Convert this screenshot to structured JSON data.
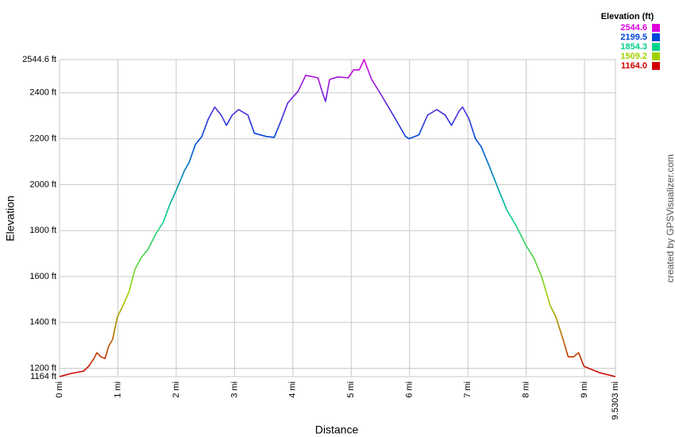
{
  "chart_data": {
    "type": "line",
    "xlabel": "Distance",
    "ylabel": "Elevation",
    "x": [
      0,
      0.2,
      0.41,
      0.5,
      0.59,
      0.64,
      0.71,
      0.78,
      0.84,
      0.91,
      0.99,
      1.09,
      1.19,
      1.29,
      1.4,
      1.51,
      1.65,
      1.78,
      1.89,
      2.0,
      2.14,
      2.22,
      2.33,
      2.44,
      2.55,
      2.66,
      2.77,
      2.86,
      2.96,
      3.07,
      3.23,
      3.34,
      3.54,
      3.68,
      3.81,
      3.91,
      4.09,
      4.22,
      4.43,
      4.5,
      4.56,
      4.63,
      4.77,
      4.95,
      5.04,
      5.14,
      5.22,
      5.35,
      5.52,
      5.72,
      5.93,
      5.99,
      6.16,
      6.31,
      6.47,
      6.61,
      6.72,
      6.85,
      6.91,
      7.02,
      7.13,
      7.23,
      7.37,
      7.53,
      7.67,
      7.83,
      8.0,
      8.13,
      8.27,
      8.41,
      8.51,
      8.62,
      8.72,
      8.81,
      8.9,
      8.99,
      9.26,
      9.53
    ],
    "values": [
      1164,
      1178,
      1188,
      1209,
      1243,
      1268,
      1250,
      1243,
      1295,
      1326,
      1423,
      1475,
      1533,
      1630,
      1682,
      1716,
      1785,
      1837,
      1913,
      1975,
      2061,
      2096,
      2175,
      2210,
      2286,
      2338,
      2303,
      2258,
      2303,
      2327,
      2303,
      2224,
      2210,
      2206,
      2286,
      2355,
      2407,
      2476,
      2465,
      2407,
      2362,
      2458,
      2469,
      2465,
      2500,
      2500,
      2545,
      2458,
      2389,
      2303,
      2210,
      2200,
      2217,
      2303,
      2327,
      2303,
      2258,
      2320,
      2338,
      2286,
      2200,
      2165,
      2079,
      1975,
      1889,
      1820,
      1734,
      1682,
      1596,
      1475,
      1423,
      1337,
      1250,
      1250,
      1268,
      1209,
      1181,
      1164
    ],
    "xlim": [
      0,
      9.5303
    ],
    "xticks": [
      {
        "value": 0,
        "label": "0 mi"
      },
      {
        "value": 1,
        "label": "1 mi"
      },
      {
        "value": 2,
        "label": "2 mi"
      },
      {
        "value": 3,
        "label": "3 mi"
      },
      {
        "value": 4,
        "label": "4 mi"
      },
      {
        "value": 5,
        "label": "5 mi"
      },
      {
        "value": 6,
        "label": "6 mi"
      },
      {
        "value": 7,
        "label": "7 mi"
      },
      {
        "value": 8,
        "label": "8 mi"
      },
      {
        "value": 9,
        "label": "9 mi"
      },
      {
        "value": 9.5303,
        "label": "9.5303 mi"
      }
    ],
    "ylim": [
      1164,
      2544.6
    ],
    "yticks": [
      {
        "value": 1164,
        "label": "1164 ft"
      },
      {
        "value": 1200,
        "label": "1200 ft"
      },
      {
        "value": 1400,
        "label": "1400 ft"
      },
      {
        "value": 1600,
        "label": "1600 ft"
      },
      {
        "value": 1800,
        "label": "1800 ft"
      },
      {
        "value": 2000,
        "label": "2000 ft"
      },
      {
        "value": 2200,
        "label": "2200 ft"
      },
      {
        "value": 2400,
        "label": "2400 ft"
      },
      {
        "value": 2544.6,
        "label": "2544.6 ft"
      }
    ],
    "grid": true,
    "legend": {
      "title": "Elevation (ft)",
      "entries": [
        {
          "value": 2544.6,
          "label": "2544.6",
          "color": "#dc00dc"
        },
        {
          "value": 2199.5,
          "label": "2199.5",
          "color": "#0046dc"
        },
        {
          "value": 1854.3,
          "label": "1854.3",
          "color": "#00d28c"
        },
        {
          "value": 1509.2,
          "label": "1509.2",
          "color": "#a0d200"
        },
        {
          "value": 1164,
          "label": "1164.0",
          "color": "#d20000"
        }
      ]
    },
    "credit": "created by GPSVisualizer.com"
  }
}
